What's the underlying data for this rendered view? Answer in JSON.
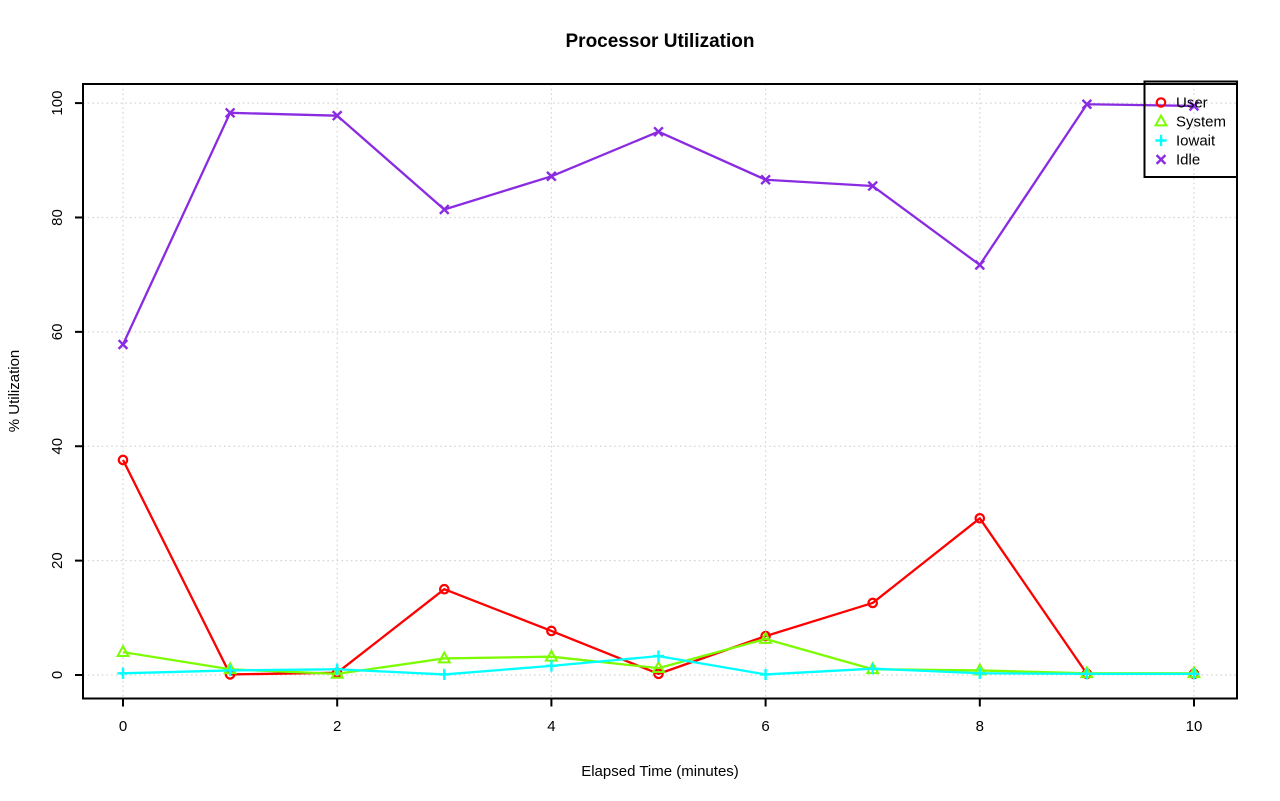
{
  "figure": {
    "background": "#ffffff"
  },
  "chart_data": {
    "type": "line",
    "title": "Processor Utilization",
    "xlabel": "Elapsed Time (minutes)",
    "ylabel": "% Utilization",
    "x": [
      0,
      1,
      2,
      3,
      4,
      5,
      6,
      7,
      8,
      9,
      10
    ],
    "x_ticks": [
      0,
      2,
      4,
      6,
      8,
      10
    ],
    "y_ticks": [
      0,
      20,
      40,
      60,
      80,
      100
    ],
    "xlim": [
      0,
      10
    ],
    "ylim": [
      0,
      100
    ],
    "grid": {
      "style": "dotted",
      "color": "#d3d3d3",
      "x_at": [
        0,
        2,
        4,
        6,
        8,
        10
      ],
      "y_at": [
        0,
        20,
        40,
        60,
        80,
        100
      ]
    },
    "legend": {
      "position": "top-right",
      "entries": [
        {
          "label": "User",
          "marker": "circle",
          "color": "#ff0000"
        },
        {
          "label": "System",
          "marker": "triangle",
          "color": "#7cfc00"
        },
        {
          "label": "Iowait",
          "marker": "plus",
          "color": "#00ffff"
        },
        {
          "label": "Idle",
          "marker": "x",
          "color": "#8a2be2"
        }
      ]
    },
    "series": [
      {
        "name": "User",
        "color": "#ff0000",
        "marker": "circle",
        "values": [
          37.6,
          0.1,
          0.4,
          15.0,
          7.7,
          0.2,
          6.8,
          12.6,
          27.4,
          0.2,
          0.2
        ]
      },
      {
        "name": "System",
        "color": "#7cfc00",
        "marker": "triangle",
        "values": [
          4.0,
          1.0,
          0.2,
          2.9,
          3.2,
          1.2,
          6.3,
          1.0,
          0.8,
          0.3,
          0.3
        ]
      },
      {
        "name": "Iowait",
        "color": "#00ffff",
        "marker": "plus",
        "values": [
          0.3,
          0.8,
          1.0,
          0.1,
          1.6,
          3.3,
          0.1,
          1.1,
          0.3,
          0.2,
          0.2
        ]
      },
      {
        "name": "Idle",
        "color": "#8a2be2",
        "marker": "x",
        "values": [
          57.8,
          98.3,
          97.8,
          81.4,
          87.2,
          95.0,
          86.6,
          85.5,
          71.7,
          99.8,
          99.5
        ]
      }
    ],
    "colors": {
      "axis": "#000000",
      "text": "#000000",
      "grid": "#d3d3d3"
    }
  }
}
